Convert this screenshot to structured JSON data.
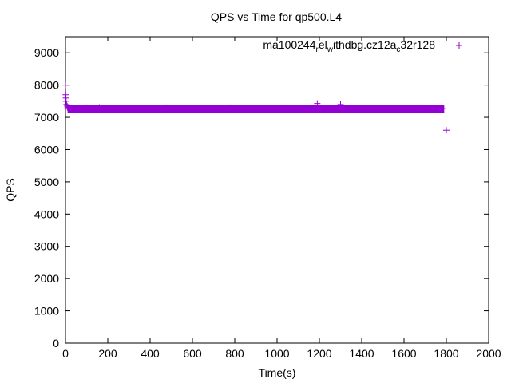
{
  "chart_data": {
    "type": "scatter",
    "title": "QPS vs Time for qp500.L4",
    "xlabel": "Time(s)",
    "ylabel": "QPS",
    "xlim": [
      0,
      2000
    ],
    "ylim": [
      0,
      9500
    ],
    "xticks": [
      0,
      200,
      400,
      600,
      800,
      1000,
      1200,
      1400,
      1600,
      1800,
      2000
    ],
    "yticks": [
      0,
      1000,
      2000,
      3000,
      4000,
      5000,
      6000,
      7000,
      8000,
      9000
    ],
    "grid": false,
    "legend": {
      "placement": "top-right",
      "label_parts": [
        {
          "text": "ma100244",
          "sub": false
        },
        {
          "text": "r",
          "sub": true
        },
        {
          "text": "el",
          "sub": false
        },
        {
          "text": "w",
          "sub": true
        },
        {
          "text": "ithdbg.cz12a",
          "sub": false
        },
        {
          "text": "c",
          "sub": true
        },
        {
          "text": "32r128",
          "sub": false
        }
      ]
    },
    "series": [
      {
        "name": "ma100244_rel_withdbg.cz12a_c32r128",
        "color": "#9400d3",
        "marker": "+",
        "band": {
          "x": [
            10,
            1790
          ],
          "ymin": 7130,
          "ymax": 7380
        },
        "x": [
          0,
          1,
          2,
          3,
          5,
          8,
          10,
          20,
          40,
          60,
          80,
          100,
          120,
          140,
          160,
          180,
          200,
          220,
          240,
          260,
          280,
          300,
          320,
          340,
          360,
          380,
          400,
          420,
          440,
          460,
          480,
          500,
          520,
          540,
          560,
          580,
          600,
          620,
          640,
          660,
          680,
          700,
          720,
          740,
          760,
          780,
          800,
          820,
          840,
          860,
          880,
          900,
          920,
          940,
          960,
          980,
          1000,
          1020,
          1040,
          1060,
          1080,
          1100,
          1120,
          1140,
          1160,
          1180,
          1190,
          1200,
          1220,
          1240,
          1260,
          1280,
          1300,
          1320,
          1340,
          1360,
          1380,
          1400,
          1420,
          1440,
          1460,
          1480,
          1500,
          1520,
          1540,
          1560,
          1580,
          1600,
          1620,
          1640,
          1660,
          1680,
          1700,
          1720,
          1740,
          1760,
          1780,
          1800
        ],
        "y": [
          8000,
          7700,
          7600,
          7500,
          7400,
          7350,
          7300,
          7250,
          7280,
          7230,
          7260,
          7300,
          7240,
          7270,
          7310,
          7250,
          7290,
          7260,
          7230,
          7280,
          7250,
          7320,
          7260,
          7240,
          7290,
          7270,
          7250,
          7280,
          7230,
          7260,
          7300,
          7250,
          7270,
          7240,
          7310,
          7260,
          7280,
          7250,
          7290,
          7240,
          7270,
          7260,
          7230,
          7280,
          7250,
          7300,
          7260,
          7240,
          7280,
          7270,
          7250,
          7290,
          7230,
          7260,
          7280,
          7250,
          7270,
          7240,
          7300,
          7260,
          7250,
          7280,
          7240,
          7270,
          7260,
          7290,
          7430,
          7250,
          7270,
          7240,
          7280,
          7260,
          7400,
          7250,
          7290,
          7240,
          7270,
          7260,
          7280,
          7250,
          7300,
          7240,
          7270,
          7260,
          7250,
          7290,
          7240,
          7280,
          7260,
          7270,
          7250,
          7300,
          7240,
          7280,
          7260,
          7250,
          7270,
          6600
        ]
      }
    ]
  }
}
